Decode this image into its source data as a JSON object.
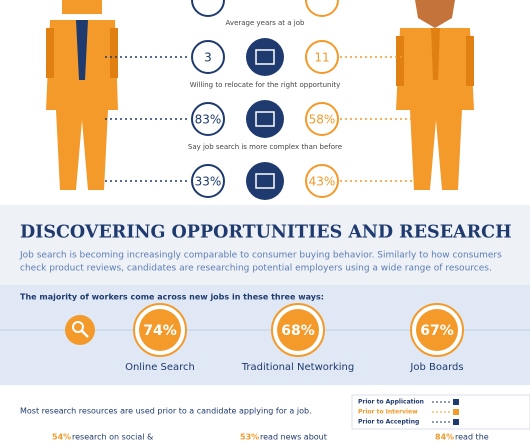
{
  "comparison": {
    "rows": [
      {
        "label": "Average years at a job",
        "left": "3",
        "right": "11"
      },
      {
        "label": "Willing to relocate for the right opportunity",
        "left": "83%",
        "right": "58%"
      },
      {
        "label": "Say job search is more complex than before",
        "left": "33%",
        "right": "43%"
      }
    ]
  },
  "section": {
    "title": "DISCOVERING OPPORTUNITIES AND RESEARCH",
    "intro": [
      "Job search is becoming increasingly comparable to consumer buying behavior. Similarly to how consumers",
      "check product reviews, candidates are researching potential employers using a wide range of resources."
    ],
    "ways_heading": "The majority of workers come across new jobs in these three ways:",
    "ways": [
      {
        "value": "74%",
        "label": "Online Search"
      },
      {
        "value": "68%",
        "label": "Traditional Networking"
      },
      {
        "value": "67%",
        "label": "Job Boards"
      }
    ],
    "research_heading": "Most research resources are used prior to a candidate applying for a job.",
    "legend": [
      "Prior to Application",
      "Prior to Interview",
      "Prior to Accepting"
    ],
    "resources": [
      {
        "value": "54%",
        "text": "research on social &"
      },
      {
        "value": "53%",
        "text": "read news about"
      },
      {
        "value": "84%",
        "text": "read the"
      }
    ]
  }
}
